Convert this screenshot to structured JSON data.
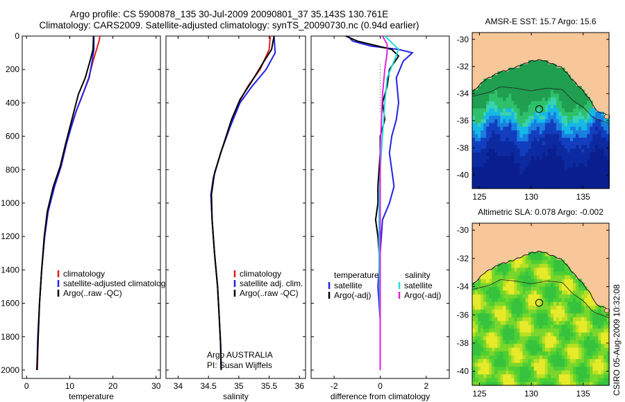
{
  "title": {
    "line1": "Argo profile: CS 5900878_135 30-Jul-2009 20090801_37 35.143S 130.761E",
    "line2": "Climatology: CARS2009. Satellite-adjusted climatology: synTS_20090730.nc (0.94d earlier)"
  },
  "credit": "CSIRO 05-Aug-2009 10:32:08",
  "colors": {
    "climatology": "#e0201b",
    "satellite": "#2121e6",
    "argo": "#000000",
    "sal_satellite": "#22dddd",
    "sal_argo": "#dd22dd",
    "land": "#f7c79a",
    "coast": "#111111"
  },
  "chart_data": [
    {
      "id": "temperature",
      "type": "line",
      "xlabel": "temperature",
      "xlim": [
        -1,
        31
      ],
      "ylim": [
        2050,
        0
      ],
      "xticks": [
        0,
        10,
        20,
        30
      ],
      "yticks": [
        0,
        200,
        400,
        600,
        800,
        1000,
        1200,
        1400,
        1600,
        1800,
        2000
      ],
      "legend": [
        "climatology",
        "satellite-adjusted climatology",
        "Argo(..raw -QC)"
      ],
      "series": [
        {
          "name": "climatology",
          "color": "#e0201b",
          "points": [
            [
              17.0,
              0
            ],
            [
              16.8,
              30
            ],
            [
              16.2,
              80
            ],
            [
              15.4,
              150
            ],
            [
              14.4,
              250
            ],
            [
              13.0,
              350
            ],
            [
              11.5,
              450
            ],
            [
              10.2,
              550
            ],
            [
              9.2,
              650
            ],
            [
              8.0,
              780
            ],
            [
              6.5,
              900
            ],
            [
              5.0,
              1050
            ],
            [
              4.2,
              1200
            ],
            [
              3.5,
              1400
            ],
            [
              3.0,
              1600
            ],
            [
              2.7,
              1800
            ],
            [
              2.5,
              2000
            ]
          ]
        },
        {
          "name": "satellite",
          "color": "#2121e6",
          "points": [
            [
              15.6,
              0
            ],
            [
              15.6,
              80
            ],
            [
              15.2,
              150
            ],
            [
              14.5,
              250
            ],
            [
              13.0,
              350
            ],
            [
              11.5,
              450
            ],
            [
              10.3,
              550
            ],
            [
              9.2,
              650
            ],
            [
              8.0,
              780
            ],
            [
              6.5,
              900
            ],
            [
              5.0,
              1050
            ],
            [
              4.2,
              1200
            ],
            [
              3.5,
              1400
            ],
            [
              3.0,
              1600
            ],
            [
              2.6,
              1800
            ],
            [
              2.4,
              2000
            ]
          ]
        },
        {
          "name": "Argo(..raw -QC)",
          "color": "#000000",
          "points": [
            [
              15.5,
              0
            ],
            [
              15.4,
              80
            ],
            [
              14.7,
              150
            ],
            [
              13.6,
              250
            ],
            [
              12.0,
              350
            ],
            [
              11.0,
              450
            ],
            [
              10.0,
              550
            ],
            [
              9.0,
              650
            ],
            [
              7.8,
              780
            ],
            [
              6.2,
              900
            ],
            [
              4.8,
              1050
            ],
            [
              4.1,
              1200
            ],
            [
              3.5,
              1400
            ],
            [
              3.0,
              1600
            ],
            [
              2.7,
              1800
            ],
            [
              2.4,
              2000
            ]
          ]
        }
      ]
    },
    {
      "id": "salinity",
      "type": "line",
      "xlabel": "salinity",
      "xlim": [
        33.8,
        36.1
      ],
      "ylim": [
        2050,
        0
      ],
      "xticks": [
        34,
        34.5,
        35,
        35.5,
        36
      ],
      "yticks": [
        0,
        200,
        400,
        600,
        800,
        1000,
        1200,
        1400,
        1600,
        1800,
        2000
      ],
      "legend": [
        "climatology",
        "satellite adj. clim.",
        "Argo(..raw -QC)"
      ],
      "annotations": [
        "Argo AUSTRALIA",
        "PI: Susan Wijffels"
      ],
      "series": [
        {
          "name": "climatology",
          "color": "#e0201b",
          "points": [
            [
              35.52,
              0
            ],
            [
              35.5,
              80
            ],
            [
              35.35,
              200
            ],
            [
              35.15,
              300
            ],
            [
              35.0,
              400
            ],
            [
              34.85,
              550
            ],
            [
              34.7,
              700
            ],
            [
              34.58,
              850
            ],
            [
              34.54,
              950
            ],
            [
              34.56,
              1100
            ],
            [
              34.6,
              1300
            ],
            [
              34.65,
              1500
            ],
            [
              34.68,
              1700
            ],
            [
              34.7,
              1850
            ],
            [
              34.71,
              2000
            ]
          ]
        },
        {
          "name": "satellite",
          "color": "#2121e6",
          "points": [
            [
              35.58,
              0
            ],
            [
              35.6,
              100
            ],
            [
              35.45,
              200
            ],
            [
              35.22,
              300
            ],
            [
              35.02,
              400
            ],
            [
              34.85,
              550
            ],
            [
              34.7,
              700
            ],
            [
              34.58,
              850
            ],
            [
              34.54,
              950
            ],
            [
              34.56,
              1100
            ],
            [
              34.6,
              1300
            ],
            [
              34.65,
              1500
            ],
            [
              34.68,
              1700
            ],
            [
              34.7,
              1850
            ],
            [
              34.71,
              2000
            ]
          ]
        },
        {
          "name": "Argo(..raw -QC)",
          "color": "#000000",
          "points": [
            [
              35.58,
              0
            ],
            [
              35.54,
              80
            ],
            [
              35.4,
              160
            ],
            [
              35.2,
              280
            ],
            [
              35.02,
              380
            ],
            [
              34.88,
              500
            ],
            [
              34.72,
              680
            ],
            [
              34.6,
              820
            ],
            [
              34.55,
              950
            ],
            [
              34.56,
              1100
            ],
            [
              34.6,
              1300
            ],
            [
              34.65,
              1500
            ],
            [
              34.68,
              1700
            ],
            [
              34.7,
              1850
            ],
            [
              34.71,
              2000
            ]
          ]
        }
      ]
    },
    {
      "id": "difference",
      "type": "line",
      "xlabel": "difference from climatology",
      "xlim": [
        -3,
        3
      ],
      "ylim": [
        2050,
        0
      ],
      "xticks": [
        -2,
        0,
        2
      ],
      "yticks": [
        0,
        200,
        400,
        600,
        800,
        1000,
        1200,
        1400,
        1600,
        1800,
        2000
      ],
      "legend_temperature": {
        "title": "temperature",
        "items": [
          "satellite",
          "Argo(-adj)"
        ]
      },
      "legend_salinity": {
        "title": "salinity",
        "items": [
          "satellite",
          "Argo(-adj)"
        ]
      },
      "series": [
        {
          "name": "temperature satellite",
          "color": "#2121e6",
          "points": [
            [
              -1.4,
              0
            ],
            [
              -1.2,
              30
            ],
            [
              -0.4,
              60
            ],
            [
              0.8,
              80
            ],
            [
              1.4,
              100
            ],
            [
              1.0,
              150
            ],
            [
              0.7,
              250
            ],
            [
              0.8,
              400
            ],
            [
              0.7,
              500
            ],
            [
              0.5,
              600
            ],
            [
              0.4,
              700
            ],
            [
              0.5,
              800
            ],
            [
              0.6,
              900
            ],
            [
              0.4,
              1000
            ],
            [
              0.1,
              1100
            ],
            [
              0.0,
              1300
            ],
            [
              -0.1,
              1500
            ],
            [
              0.0,
              1700
            ],
            [
              0.0,
              2000
            ]
          ]
        },
        {
          "name": "temperature Argo(-adj)",
          "color": "#000000",
          "points": [
            [
              -1.5,
              0
            ],
            [
              -1.0,
              30
            ],
            [
              -0.1,
              60
            ],
            [
              0.5,
              80
            ],
            [
              0.8,
              120
            ],
            [
              0.4,
              200
            ],
            [
              0.3,
              300
            ],
            [
              0.1,
              400
            ],
            [
              0.2,
              500
            ],
            [
              0.0,
              600
            ],
            [
              0.0,
              700
            ],
            [
              -0.1,
              900
            ],
            [
              -0.1,
              1000
            ],
            [
              -0.2,
              1100
            ],
            [
              -0.1,
              1200
            ],
            [
              0.0,
              1400
            ],
            [
              0.0,
              1700
            ],
            [
              0.0,
              2000
            ]
          ]
        },
        {
          "name": "salinity satellite",
          "color": "#22dddd",
          "points": [
            [
              0.2,
              0
            ],
            [
              0.5,
              40
            ],
            [
              0.8,
              80
            ],
            [
              0.6,
              150
            ],
            [
              0.3,
              250
            ],
            [
              0.2,
              400
            ],
            [
              0.1,
              600
            ],
            [
              0.0,
              800
            ],
            [
              -0.05,
              1000
            ],
            [
              -0.05,
              1200
            ],
            [
              -0.05,
              1400
            ],
            [
              0.0,
              1700
            ],
            [
              0.0,
              2000
            ]
          ]
        },
        {
          "name": "salinity Argo(-adj)",
          "color": "#dd22dd",
          "points": [
            [
              0.1,
              0
            ],
            [
              0.3,
              50
            ],
            [
              0.3,
              100
            ],
            [
              0.2,
              200
            ],
            [
              0.1,
              350
            ],
            [
              0.05,
              500
            ],
            [
              0.0,
              700
            ],
            [
              0.0,
              1000
            ],
            [
              0.0,
              1400
            ],
            [
              0.0,
              2000
            ]
          ]
        }
      ]
    },
    {
      "id": "sst_map",
      "type": "heatmap",
      "title": "AMSR-E SST: 15.7 Argo: 15.6",
      "lon_range": [
        124.3,
        137.5
      ],
      "lat_range": [
        -41,
        -29.5
      ],
      "xticks": [
        125,
        130,
        135
      ],
      "yticks": [
        -30,
        -32,
        -34,
        -36,
        -38,
        -40
      ],
      "argo_position": {
        "lon": 130.761,
        "lat": -35.143
      }
    },
    {
      "id": "sla_map",
      "type": "heatmap",
      "title": "Altimetric SLA: 0.078 Argo: -0.002",
      "lon_range": [
        124.3,
        137.5
      ],
      "lat_range": [
        -41,
        -29.5
      ],
      "xticks": [
        125,
        130,
        135
      ],
      "yticks": [
        -30,
        -32,
        -34,
        -36,
        -38,
        -40
      ],
      "argo_position": {
        "lon": 130.761,
        "lat": -35.143
      }
    }
  ]
}
